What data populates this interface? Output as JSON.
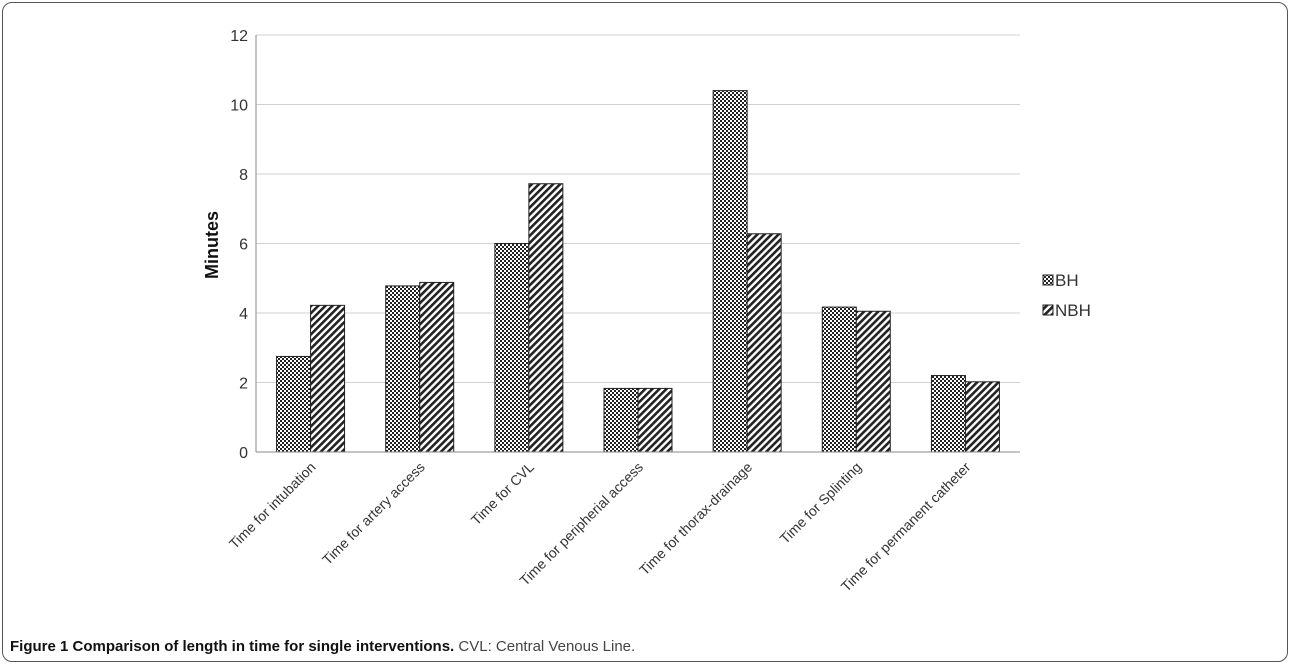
{
  "caption": {
    "figure_label": "Figure 1 Comparison of length in time for single interventions.",
    "note": "CVL: Central Venous Line."
  },
  "chart_data": {
    "type": "bar",
    "title": "",
    "xlabel": "",
    "ylabel": "Minutes",
    "ylim": [
      0,
      12
    ],
    "yticks": [
      0,
      2,
      4,
      6,
      8,
      10,
      12
    ],
    "grid": true,
    "legend_position": "right",
    "categories": [
      "Time for intubation",
      "Time for artery access",
      "Time for CVL",
      "Time for peripherial access",
      "Time for thorax-drainage",
      "Time for Splinting",
      "Time for permanent catheter"
    ],
    "series": [
      {
        "name": "BH",
        "pattern": "checker",
        "values": [
          2.75,
          4.78,
          6.0,
          1.83,
          10.4,
          4.17,
          2.2
        ]
      },
      {
        "name": "NBH",
        "pattern": "diagonal",
        "values": [
          4.22,
          4.88,
          7.72,
          1.83,
          6.28,
          4.05,
          2.02
        ]
      }
    ]
  }
}
